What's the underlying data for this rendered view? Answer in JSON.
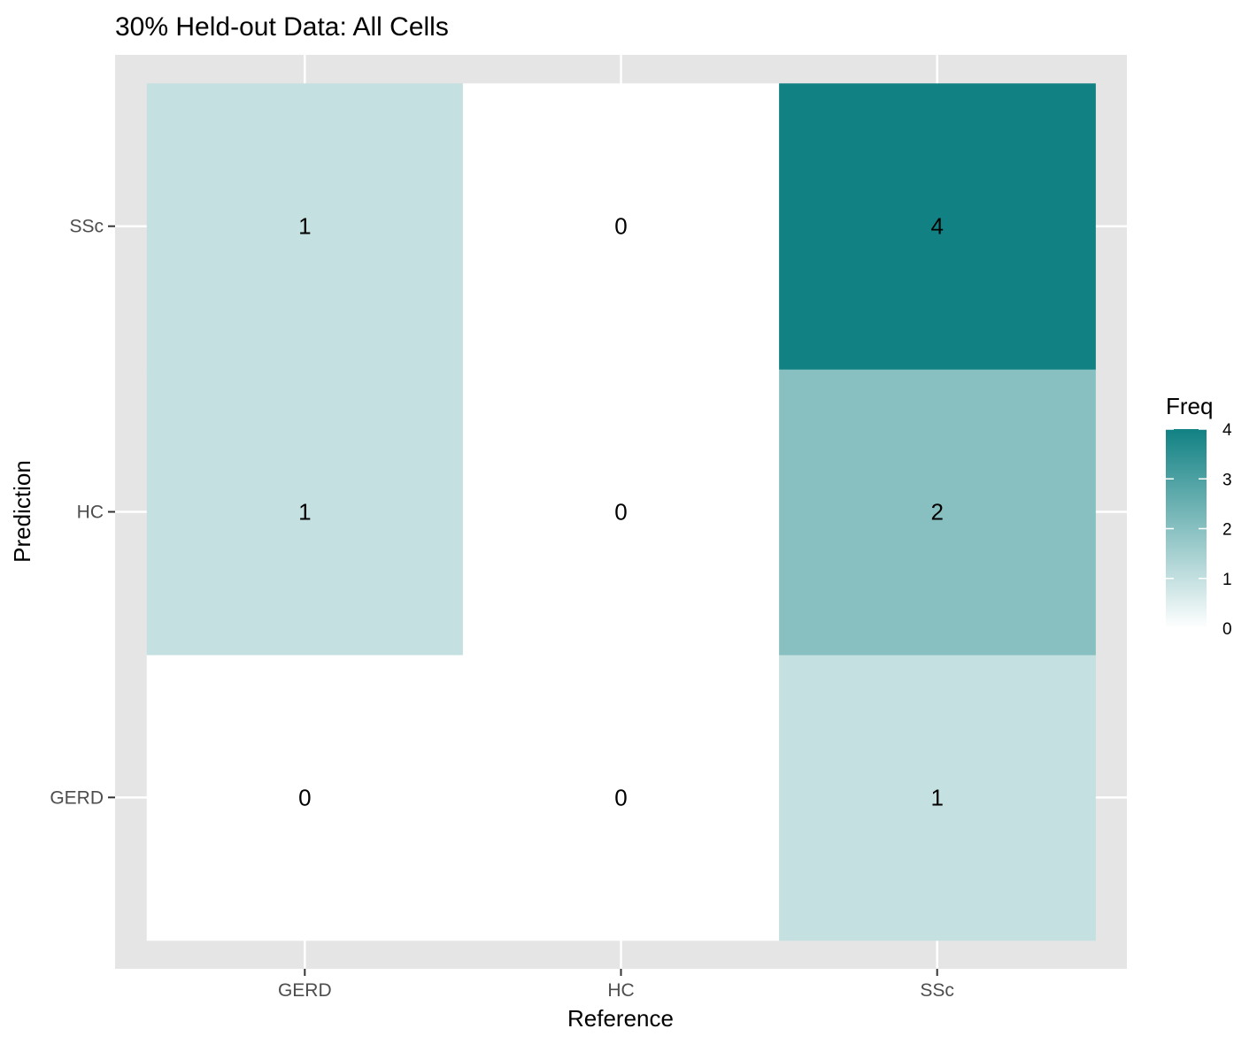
{
  "chart_data": {
    "type": "heatmap",
    "title": "30% Held-out Data: All Cells",
    "xlabel": "Reference",
    "ylabel": "Prediction",
    "x_categories": [
      "GERD",
      "HC",
      "SSc"
    ],
    "y_categories": [
      "GERD",
      "HC",
      "SSc"
    ],
    "cells": [
      {
        "reference": "GERD",
        "prediction": "GERD",
        "freq": 0
      },
      {
        "reference": "HC",
        "prediction": "GERD",
        "freq": 0
      },
      {
        "reference": "SSc",
        "prediction": "GERD",
        "freq": 1
      },
      {
        "reference": "GERD",
        "prediction": "HC",
        "freq": 1
      },
      {
        "reference": "HC",
        "prediction": "HC",
        "freq": 0
      },
      {
        "reference": "SSc",
        "prediction": "HC",
        "freq": 2
      },
      {
        "reference": "GERD",
        "prediction": "SSc",
        "freq": 1
      },
      {
        "reference": "HC",
        "prediction": "SSc",
        "freq": 0
      },
      {
        "reference": "SSc",
        "prediction": "SSc",
        "freq": 4
      }
    ],
    "legend": {
      "title": "Freq",
      "ticks": [
        0,
        1,
        2,
        3,
        4
      ],
      "range": [
        0,
        4
      ],
      "low_color": "#ffffff",
      "high_color": "#118183",
      "placement": "right"
    },
    "grid": true,
    "panel_background": "#e5e5e5",
    "grid_color": "#ffffff"
  }
}
